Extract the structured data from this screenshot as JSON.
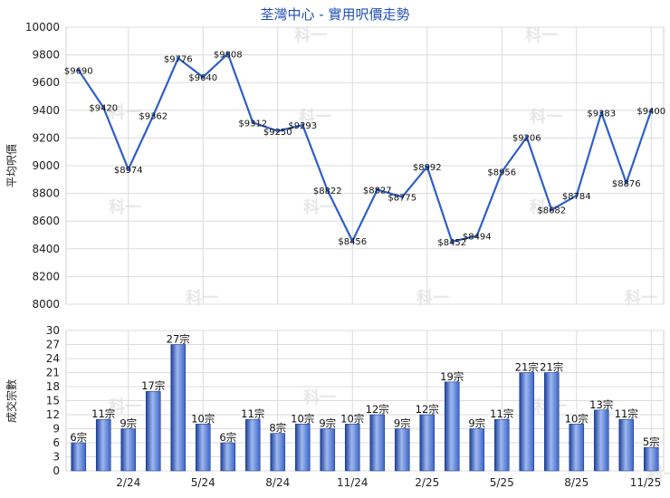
{
  "chart_data": [
    {
      "type": "line",
      "title": "荃灣中心 - 實用呎價走勢",
      "ylabel": "平均呎價",
      "ylim": [
        8000,
        10000
      ],
      "yticks": [
        8000,
        8200,
        8400,
        8600,
        8800,
        9000,
        9200,
        9400,
        9600,
        9800,
        10000
      ],
      "color": "#2f5fc6",
      "grid": true,
      "values": [
        9690,
        9420,
        8974,
        9362,
        9776,
        9640,
        9808,
        9312,
        9250,
        9293,
        8822,
        8456,
        8827,
        8775,
        8992,
        8452,
        8494,
        8956,
        9206,
        8682,
        8784,
        9383,
        8876,
        9400
      ],
      "labels": [
        "$9690",
        "$9420",
        "$8974",
        "$9362",
        "$9776",
        "$9640",
        "$9808",
        "$9312",
        "$9250",
        "$9293",
        "$8822",
        "$8456",
        "$8827",
        "$8775",
        "$8992",
        "$8452",
        "$8494",
        "$8956",
        "$9206",
        "$8682",
        "$8784",
        "$9383",
        "$8876",
        "$9400"
      ]
    },
    {
      "type": "bar",
      "ylabel": "成交宗數",
      "ylim": [
        0,
        30
      ],
      "yticks": [
        0,
        3,
        6,
        9,
        12,
        15,
        18,
        21,
        24,
        27,
        30
      ],
      "color": "#3a64c8",
      "grid": true,
      "values": [
        6,
        11,
        9,
        17,
        27,
        10,
        6,
        11,
        8,
        10,
        9,
        10,
        12,
        9,
        12,
        19,
        9,
        11,
        21,
        21,
        10,
        13,
        11,
        5
      ],
      "labels": [
        "6宗",
        "11宗",
        "9宗",
        "17宗",
        "27宗",
        "10宗",
        "6宗",
        "11宗",
        "8宗",
        "10宗",
        "9宗",
        "10宗",
        "12宗",
        "9宗",
        "12宗",
        "19宗",
        "9宗",
        "11宗",
        "21宗",
        "21宗",
        "10宗",
        "13宗",
        "11宗",
        "5宗"
      ],
      "x_tick_labels": [
        "2/24",
        "5/24",
        "8/24",
        "11/24",
        "2/25",
        "5/25",
        "8/25",
        "11/25"
      ],
      "x_tick_indices": [
        2,
        5,
        8,
        11,
        14,
        17,
        20,
        23
      ]
    }
  ],
  "watermark": "科一"
}
